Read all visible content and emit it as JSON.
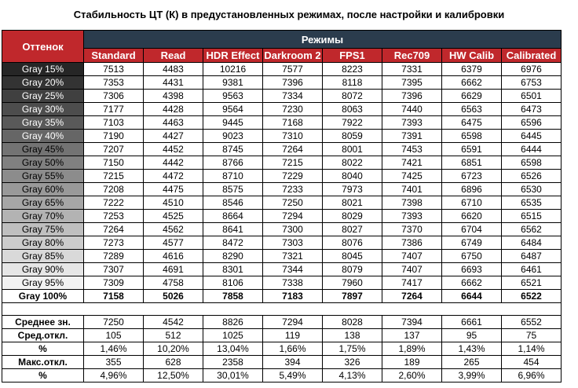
{
  "title": "Стабильность ЦТ (К) в предустановленных режимах, после настройки и калибровки",
  "header": {
    "shade_label": "Оттенок",
    "modes_label": "Режимы",
    "modes": [
      "Standard",
      "Read",
      "HDR Effect",
      "Darkroom 2",
      "FPS1",
      "Rec709",
      "HW Calib",
      "Calibrated"
    ]
  },
  "colors": {
    "header_red": "#c0282c",
    "header_dark": "#2b3c4d",
    "header_text": "#ffffff"
  },
  "rows": [
    {
      "label": "Gray 15%",
      "bg": "#262626",
      "fg": "#ffffff",
      "values": [
        "7513",
        "4483",
        "10216",
        "7577",
        "8223",
        "7331",
        "6379",
        "6976"
      ]
    },
    {
      "label": "Gray 20%",
      "bg": "#333333",
      "fg": "#ffffff",
      "values": [
        "7353",
        "4431",
        "9381",
        "7396",
        "8118",
        "7395",
        "6662",
        "6753"
      ]
    },
    {
      "label": "Gray 25%",
      "bg": "#404040",
      "fg": "#ffffff",
      "values": [
        "7306",
        "4398",
        "9563",
        "7334",
        "8072",
        "7396",
        "6629",
        "6501"
      ]
    },
    {
      "label": "Gray 30%",
      "bg": "#4d4d4d",
      "fg": "#ffffff",
      "values": [
        "7177",
        "4428",
        "9564",
        "7230",
        "8063",
        "7440",
        "6563",
        "6473"
      ]
    },
    {
      "label": "Gray 35%",
      "bg": "#595959",
      "fg": "#ffffff",
      "values": [
        "7103",
        "4463",
        "9445",
        "7168",
        "7922",
        "7393",
        "6475",
        "6596"
      ]
    },
    {
      "label": "Gray 40%",
      "bg": "#666666",
      "fg": "#ffffff",
      "values": [
        "7190",
        "4427",
        "9023",
        "7310",
        "8059",
        "7391",
        "6598",
        "6445"
      ]
    },
    {
      "label": "Gray 45%",
      "bg": "#737373",
      "fg": "#000000",
      "values": [
        "7207",
        "4452",
        "8745",
        "7264",
        "8001",
        "7453",
        "6591",
        "6444"
      ]
    },
    {
      "label": "Gray 50%",
      "bg": "#808080",
      "fg": "#000000",
      "values": [
        "7150",
        "4442",
        "8766",
        "7215",
        "8022",
        "7421",
        "6851",
        "6598"
      ]
    },
    {
      "label": "Gray 55%",
      "bg": "#8c8c8c",
      "fg": "#000000",
      "values": [
        "7215",
        "4472",
        "8710",
        "7229",
        "8040",
        "7425",
        "6723",
        "6526"
      ]
    },
    {
      "label": "Gray 60%",
      "bg": "#999999",
      "fg": "#000000",
      "values": [
        "7208",
        "4475",
        "8575",
        "7233",
        "7973",
        "7401",
        "6896",
        "6530"
      ]
    },
    {
      "label": "Gray 65%",
      "bg": "#a6a6a6",
      "fg": "#000000",
      "values": [
        "7222",
        "4510",
        "8546",
        "7250",
        "8021",
        "7398",
        "6710",
        "6535"
      ]
    },
    {
      "label": "Gray 70%",
      "bg": "#b3b3b3",
      "fg": "#000000",
      "values": [
        "7253",
        "4525",
        "8664",
        "7294",
        "8029",
        "7393",
        "6620",
        "6515"
      ]
    },
    {
      "label": "Gray 75%",
      "bg": "#bfbfbf",
      "fg": "#000000",
      "values": [
        "7264",
        "4562",
        "8641",
        "7300",
        "8027",
        "7370",
        "6704",
        "6562"
      ]
    },
    {
      "label": "Gray 80%",
      "bg": "#cccccc",
      "fg": "#000000",
      "values": [
        "7273",
        "4577",
        "8472",
        "7303",
        "8076",
        "7386",
        "6749",
        "6484"
      ]
    },
    {
      "label": "Gray 85%",
      "bg": "#d9d9d9",
      "fg": "#000000",
      "values": [
        "7289",
        "4616",
        "8290",
        "7321",
        "8045",
        "7407",
        "6750",
        "6487"
      ]
    },
    {
      "label": "Gray 90%",
      "bg": "#e6e6e6",
      "fg": "#000000",
      "values": [
        "7307",
        "4691",
        "8301",
        "7344",
        "8079",
        "7407",
        "6693",
        "6461"
      ]
    },
    {
      "label": "Gray 95%",
      "bg": "#f2f2f2",
      "fg": "#000000",
      "values": [
        "7309",
        "4758",
        "8106",
        "7338",
        "7960",
        "7417",
        "6662",
        "6521"
      ]
    },
    {
      "label": "Gray 100%",
      "bg": "#ffffff",
      "fg": "#000000",
      "values": [
        "7158",
        "5026",
        "7858",
        "7183",
        "7897",
        "7264",
        "6644",
        "6522"
      ]
    }
  ],
  "stats": [
    {
      "label": "Среднее зн.",
      "values": [
        "7250",
        "4542",
        "8826",
        "7294",
        "8028",
        "7394",
        "6661",
        "6552"
      ]
    },
    {
      "label": "Сред.откл.",
      "values": [
        "105",
        "512",
        "1025",
        "119",
        "138",
        "137",
        "95",
        "75"
      ]
    },
    {
      "label": "%",
      "values": [
        "1,46%",
        "10,20%",
        "13,04%",
        "1,66%",
        "1,75%",
        "1,89%",
        "1,43%",
        "1,14%"
      ]
    },
    {
      "label": "Макс.откл.",
      "values": [
        "355",
        "628",
        "2358",
        "394",
        "326",
        "189",
        "265",
        "454"
      ]
    },
    {
      "label": "%",
      "values": [
        "4,96%",
        "12,50%",
        "30,01%",
        "5,49%",
        "4,13%",
        "2,60%",
        "3,99%",
        "6,96%"
      ]
    }
  ]
}
